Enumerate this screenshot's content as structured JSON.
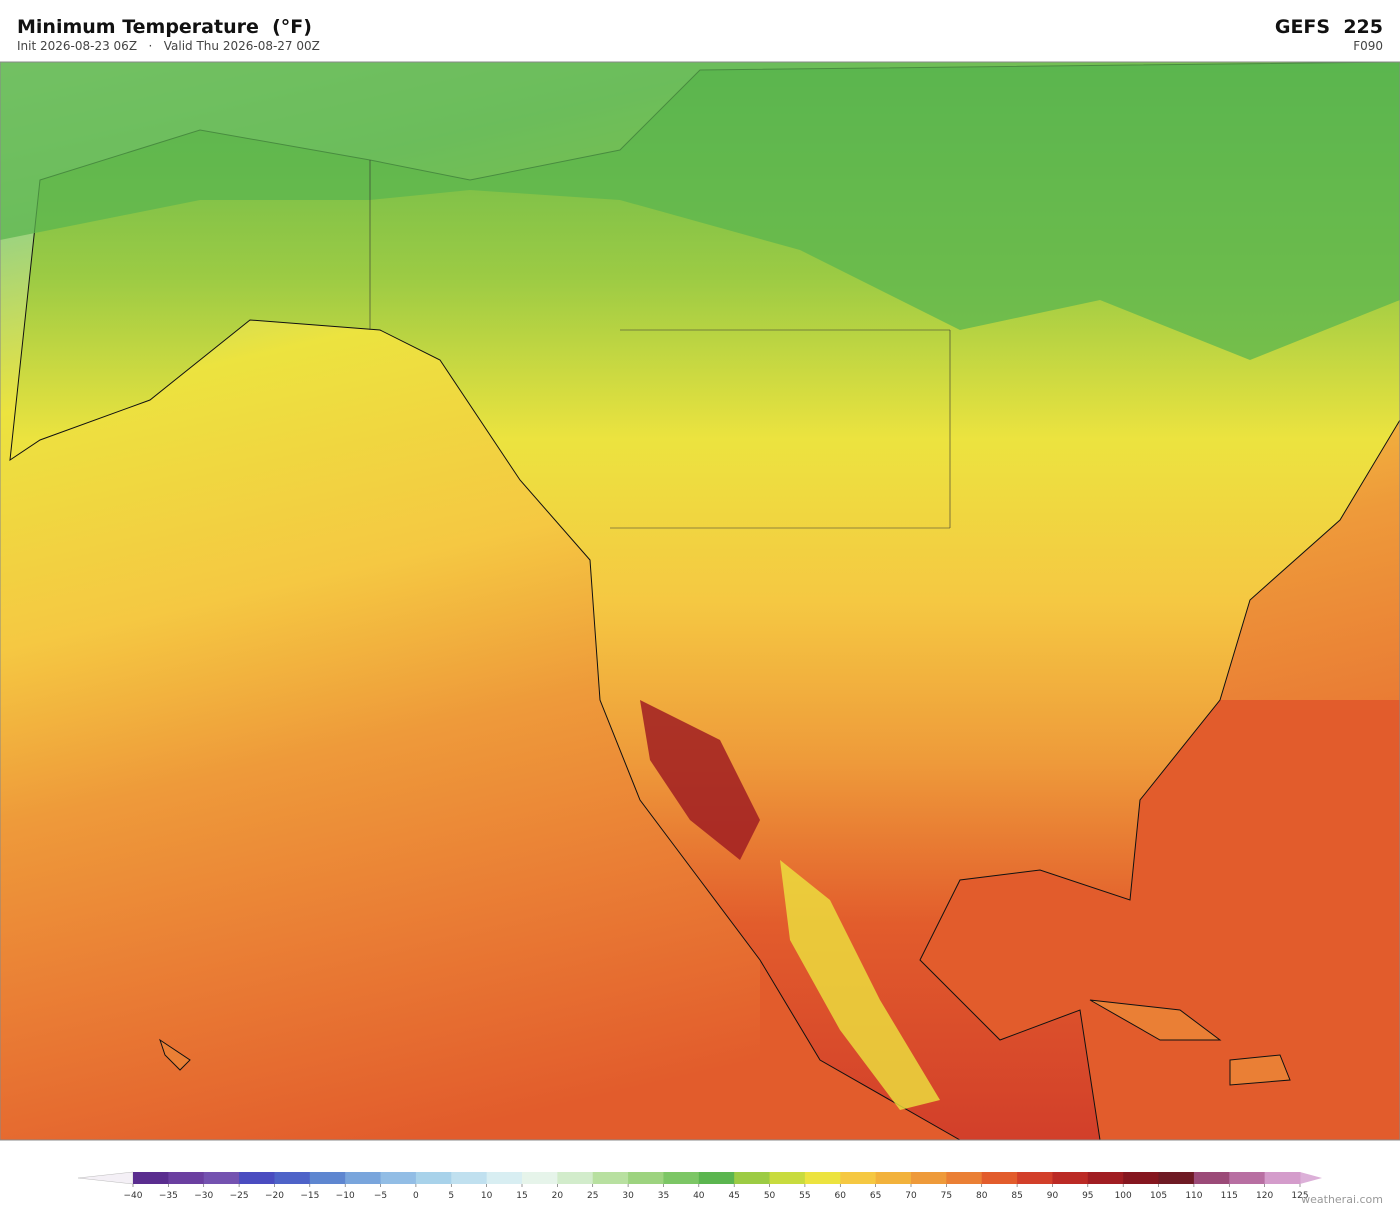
{
  "header": {
    "title": "Minimum Temperature  (°F)",
    "subtitle": "Init 2026-08-23 06Z   ·   Valid Thu 2026-08-27 00Z",
    "model": "GEFS  225",
    "forecast_hour": "F090"
  },
  "colorbar": {
    "ticks": [
      {
        "value": -40,
        "label": "−40"
      },
      {
        "value": -35,
        "label": "−35"
      },
      {
        "value": -30,
        "label": "−30"
      },
      {
        "value": -25,
        "label": "−25"
      },
      {
        "value": -20,
        "label": "−20"
      },
      {
        "value": -15,
        "label": "−15"
      },
      {
        "value": -10,
        "label": "−10"
      },
      {
        "value": -5,
        "label": "−5"
      },
      0,
      5,
      10,
      15,
      20,
      25,
      30,
      35,
      40,
      45,
      50,
      55,
      60,
      65,
      70,
      75,
      80,
      85,
      90,
      95,
      100,
      105,
      110,
      115,
      120,
      125
    ],
    "colors": [
      "#5a2d8f",
      "#6b3fa0",
      "#7452b0",
      "#4a4cc0",
      "#4e63c8",
      "#5e86d0",
      "#79a5dc",
      "#92bde5",
      "#a8d2ea",
      "#c0e0ef",
      "#d8eef2",
      "#e6f4ea",
      "#d2eccb",
      "#b8e0a0",
      "#9dd37f",
      "#7cc665",
      "#5bb54f",
      "#9ccb44",
      "#c8db3e",
      "#ece33f",
      "#f5c842",
      "#f2b23c",
      "#ee9a3a",
      "#ea7f35",
      "#e25c2c",
      "#d23f2a",
      "#bb2a25",
      "#a01d22",
      "#85161f",
      "#6e1a24",
      "#9b4a78",
      "#b86fa2",
      "#d49ccb"
    ],
    "under_color": "#f4f0f6",
    "over_color": "#dcb0d8"
  },
  "credit": "weatherai.com"
}
